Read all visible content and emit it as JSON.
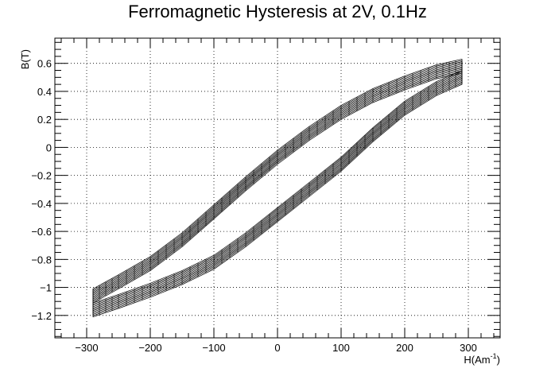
{
  "chart_data": {
    "type": "line",
    "title": "Ferromagnetic Hysteresis at 2V, 0.1Hz",
    "xlabel": "H(Am",
    "xlabel_sup": "-1",
    "xlabel_close": ")",
    "ylabel": "B(T)",
    "xlim": [
      -350,
      350
    ],
    "ylim": [
      -1.36,
      0.78
    ],
    "grid": true,
    "grid_style": "dotted",
    "x_ticks": [
      -300,
      -200,
      -100,
      0,
      100,
      200,
      300
    ],
    "x_tick_labels": [
      "−300",
      "−200",
      "−100",
      "0",
      "100",
      "200",
      "300"
    ],
    "y_ticks": [
      -1.2,
      -1.0,
      -0.8,
      -0.6,
      -0.4,
      -0.2,
      0,
      0.2,
      0.4,
      0.6
    ],
    "y_tick_labels": [
      "−1.2",
      "−1",
      "−0.8",
      "−0.6",
      "−0.4",
      "−0.2",
      "0",
      "0.2",
      "0.4",
      "0.6"
    ],
    "series": [
      {
        "branch": "upper",
        "x": [
          -290,
          -250,
          -200,
          -150,
          -100,
          -50,
          0,
          50,
          100,
          150,
          200,
          250,
          290
        ],
        "y": [
          -1.06,
          -0.96,
          -0.83,
          -0.66,
          -0.46,
          -0.26,
          -0.07,
          0.1,
          0.25,
          0.37,
          0.46,
          0.54,
          0.58
        ]
      },
      {
        "branch": "lower",
        "x": [
          290,
          250,
          200,
          150,
          100,
          50,
          0,
          -50,
          -100,
          -150,
          -200,
          -250,
          -290
        ],
        "y": [
          0.5,
          0.42,
          0.28,
          0.09,
          -0.12,
          -0.3,
          -0.48,
          -0.66,
          -0.82,
          -0.93,
          -1.02,
          -1.1,
          -1.16
        ]
      }
    ],
    "band_thickness_B": 0.1,
    "band_cycles": 12,
    "line_color": "#000000"
  }
}
